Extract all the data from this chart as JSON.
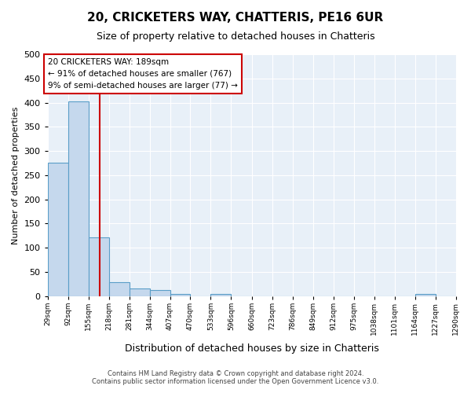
{
  "title": "20, CRICKETERS WAY, CHATTERIS, PE16 6UR",
  "subtitle": "Size of property relative to detached houses in Chatteris",
  "xlabel": "Distribution of detached houses by size in Chatteris",
  "ylabel": "Number of detached properties",
  "bar_edges": [
    29,
    92,
    155,
    218,
    281,
    344,
    407,
    470,
    533,
    596,
    660,
    723,
    786,
    849,
    912,
    975,
    1038,
    1101,
    1164,
    1227,
    1290
  ],
  "bar_heights": [
    276,
    403,
    122,
    29,
    16,
    13,
    5,
    0,
    5,
    0,
    0,
    0,
    0,
    0,
    0,
    0,
    0,
    0,
    5,
    0
  ],
  "bar_color": "#c5d8ed",
  "bar_edge_color": "#5a9ec8",
  "vline_x": 189,
  "vline_color": "#cc0000",
  "annotation_text": "20 CRICKETERS WAY: 189sqm\n← 91% of detached houses are smaller (767)\n9% of semi-detached houses are larger (77) →",
  "annotation_box_color": "#cc0000",
  "ylim": [
    0,
    500
  ],
  "yticks": [
    0,
    50,
    100,
    150,
    200,
    250,
    300,
    350,
    400,
    450,
    500
  ],
  "tick_labels": [
    "29sqm",
    "92sqm",
    "155sqm",
    "218sqm",
    "281sqm",
    "344sqm",
    "407sqm",
    "470sqm",
    "533sqm",
    "596sqm",
    "660sqm",
    "723sqm",
    "786sqm",
    "849sqm",
    "912sqm",
    "975sqm",
    "1038sqm",
    "1101sqm",
    "1164sqm",
    "1227sqm",
    "1290sqm"
  ],
  "plot_bg_color": "#e8f0f8",
  "footer_line1": "Contains HM Land Registry data © Crown copyright and database right 2024.",
  "footer_line2": "Contains public sector information licensed under the Open Government Licence v3.0."
}
